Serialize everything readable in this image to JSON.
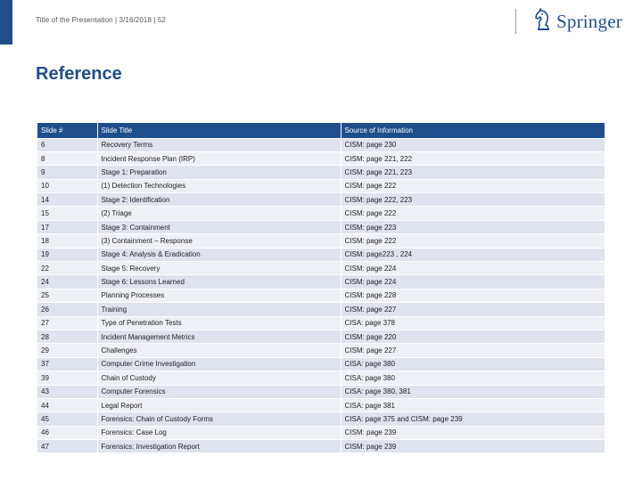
{
  "header": {
    "text": "Title of the Presentation | 3/16/2018 | 52",
    "logo_text": "Springer",
    "logo_icon": "chess-knight-icon"
  },
  "title": "Reference",
  "table": {
    "headers": [
      "Slide #",
      "Slide Title",
      "Source of Information"
    ],
    "rows": [
      [
        "6",
        "Recovery Terms",
        "CISM: page 230"
      ],
      [
        "8",
        "Incident Response Plan (IRP)",
        "CISM: page 221, 222"
      ],
      [
        "9",
        "Stage 1: Preparation",
        "CISM: page 221, 223"
      ],
      [
        "10",
        "(1) Detection Technologies",
        "CISM: page 222"
      ],
      [
        "14",
        "Stage 2: Identification",
        "CISM: page 222, 223"
      ],
      [
        "15",
        "(2) Triage",
        "CISM: page 222"
      ],
      [
        "17",
        "Stage 3: Containment",
        "CISM: page 223"
      ],
      [
        "18",
        "(3) Containment – Response",
        "CISM: page 222"
      ],
      [
        "19",
        "Stage 4: Analysis & Eradication",
        "CISM: page223 , 224"
      ],
      [
        "22",
        "Stage 5: Recovery",
        "CISM: page 224"
      ],
      [
        "24",
        "Stage 6: Lessons Learned",
        "CISM: page 224"
      ],
      [
        "25",
        "Planning Processes",
        "CISM: page 228"
      ],
      [
        "26",
        "Training",
        "CISM: page 227"
      ],
      [
        "27",
        "Type of Penetration Tests",
        "CISA: page 378"
      ],
      [
        "28",
        "Incident Management Metrics",
        "CISM: page 220"
      ],
      [
        "29",
        "Challenges",
        "CISM: page 227"
      ],
      [
        "37",
        "Computer Crime Investigation",
        "CISA: page 380"
      ],
      [
        "39",
        "Chain of Custody",
        "CISA: page 380"
      ],
      [
        "43",
        "Computer Forensics",
        "CISA: page 380, 381"
      ],
      [
        "44",
        "Legal Report",
        "CISA: page 381"
      ],
      [
        "45",
        "Forensics: Chain of Custody Forms",
        "CISA: page 375 and CISM: page 239"
      ],
      [
        "46",
        "Forensics: Case Log",
        "CISM: page 239"
      ],
      [
        "47",
        "Forensics: Investigation Report",
        "CISM: page 239"
      ]
    ]
  },
  "colors": {
    "accent": "#1f4e8c",
    "row_odd": "#dfe3ee",
    "row_even": "#eef0f6"
  }
}
